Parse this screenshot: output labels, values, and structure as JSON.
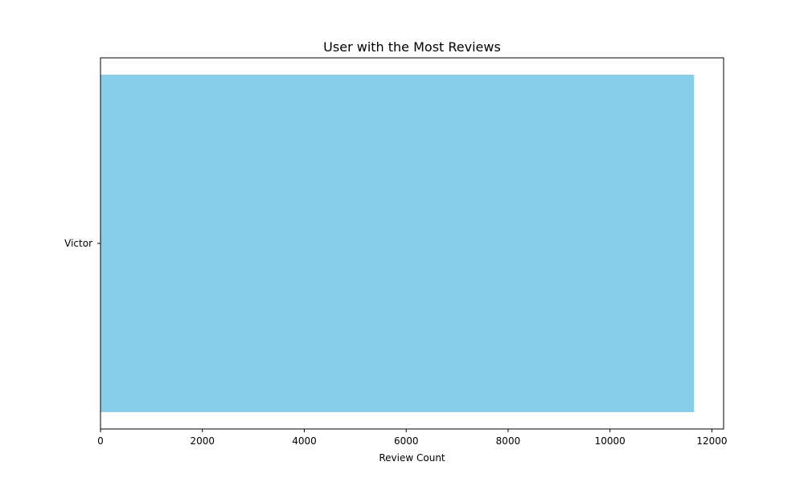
{
  "chart_data": {
    "type": "bar",
    "orientation": "horizontal",
    "title": "User with the Most Reviews",
    "xlabel": "Review Count",
    "ylabel": "",
    "categories": [
      "Victor"
    ],
    "values": [
      11650
    ],
    "xlim": [
      0,
      12230
    ],
    "xticks": [
      0,
      2000,
      4000,
      6000,
      8000,
      10000,
      12000
    ],
    "bar_color": "#87CEEB",
    "grid": false,
    "legend": "none"
  }
}
